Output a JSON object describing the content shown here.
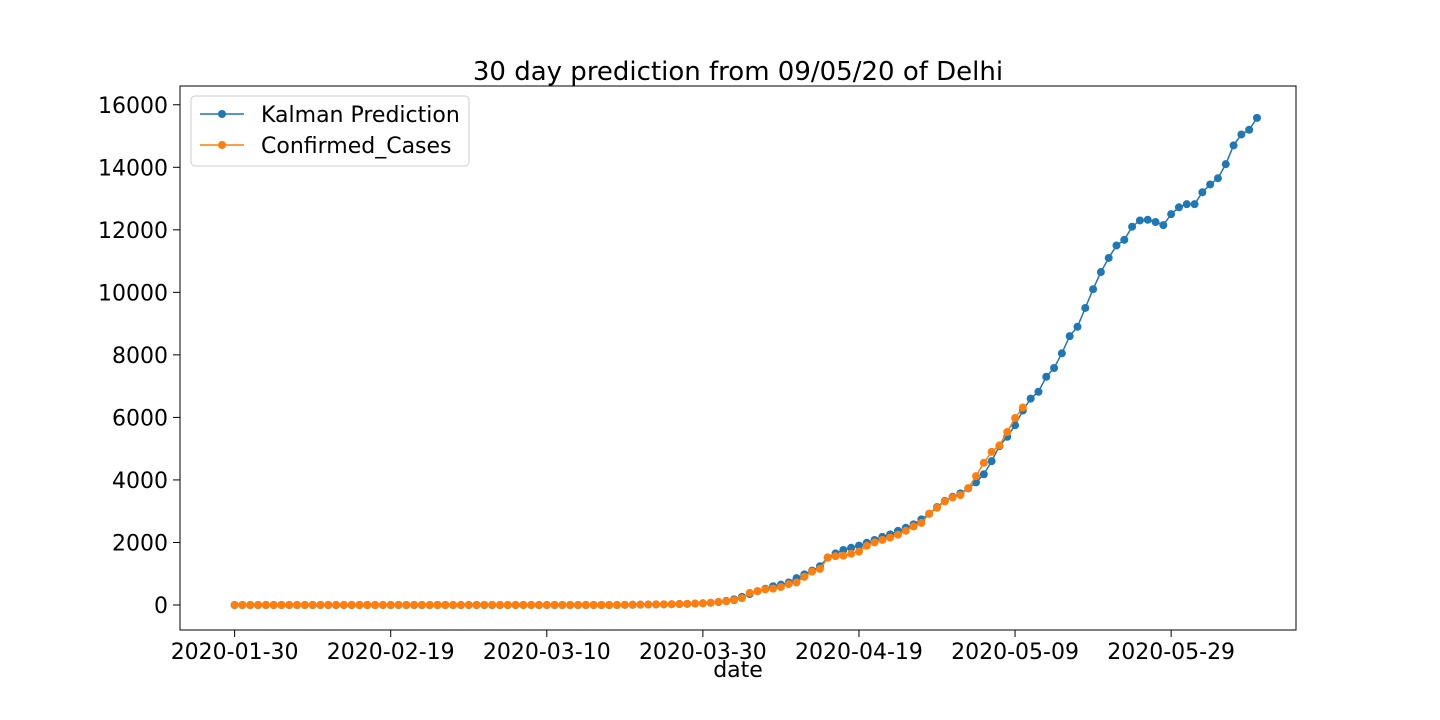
{
  "chart_data": {
    "type": "line",
    "title": "30 day prediction from 09/05/20 of Delhi",
    "xlabel": "date",
    "ylabel": "",
    "x_start": "2020-01-30",
    "x_end": "2020-06-08",
    "xlim": [
      "2020-01-23",
      "2020-06-14"
    ],
    "ylim": [
      -800,
      16600
    ],
    "x_ticks": [
      "2020-01-30",
      "2020-02-19",
      "2020-03-10",
      "2020-03-30",
      "2020-04-19",
      "2020-05-09",
      "2020-05-29"
    ],
    "y_ticks": [
      0,
      2000,
      4000,
      6000,
      8000,
      10000,
      12000,
      14000,
      16000
    ],
    "grid": false,
    "legend_position": "upper-left",
    "series": [
      {
        "name": "Kalman Prediction",
        "color": "#1f77b4",
        "marker": "circle",
        "start": "2020-01-30",
        "values": [
          0,
          0,
          0,
          0,
          0,
          0,
          0,
          0,
          0,
          0,
          0,
          0,
          0,
          0,
          0,
          0,
          0,
          0,
          0,
          0,
          0,
          0,
          0,
          0,
          0,
          0,
          0,
          0,
          0,
          0,
          0,
          0,
          0,
          0,
          0,
          0,
          0,
          0,
          0,
          0,
          0,
          0,
          0,
          0,
          0,
          0,
          0,
          0,
          0,
          0,
          5,
          8,
          12,
          15,
          18,
          21,
          25,
          30,
          37,
          45,
          55,
          70,
          95,
          130,
          180,
          260,
          350,
          440,
          520,
          600,
          650,
          720,
          860,
          980,
          1100,
          1240,
          1520,
          1650,
          1760,
          1830,
          1900,
          1990,
          2080,
          2180,
          2260,
          2370,
          2470,
          2580,
          2740,
          2920,
          3130,
          3330,
          3460,
          3570,
          3730,
          3920,
          4180,
          4600,
          5080,
          5380,
          5750,
          6220,
          6600,
          6820,
          7300,
          7580,
          8050,
          8600,
          8900,
          9500,
          10100,
          10650,
          11100,
          11500,
          11680,
          12100,
          12300,
          12320,
          12250,
          12150,
          12500,
          12720,
          12820,
          12820,
          13200,
          13450,
          13650,
          14100,
          14700,
          15050,
          15200,
          15580
        ]
      },
      {
        "name": "Confirmed_Cases",
        "color": "#ff7f0e",
        "marker": "circle",
        "start": "2020-01-30",
        "values": [
          0,
          0,
          0,
          0,
          0,
          0,
          0,
          0,
          0,
          0,
          0,
          0,
          0,
          0,
          0,
          0,
          0,
          0,
          0,
          0,
          0,
          0,
          0,
          0,
          0,
          0,
          0,
          0,
          0,
          0,
          0,
          0,
          0,
          0,
          0,
          0,
          0,
          0,
          0,
          0,
          0,
          0,
          0,
          0,
          0,
          0,
          0,
          0,
          0,
          0,
          5,
          8,
          12,
          15,
          18,
          21,
          25,
          30,
          37,
          45,
          55,
          72,
          97,
          120,
          152,
          219,
          386,
          445,
          503,
          523,
          576,
          669,
          720,
          903,
          1069,
          1154,
          1510,
          1561,
          1578,
          1640,
          1707,
          1893,
          2003,
          2081,
          2156,
          2248,
          2376,
          2514,
          2625,
          2918,
          3108,
          3314,
          3439,
          3515,
          3738,
          4122,
          4549,
          4898,
          5104,
          5532,
          5980,
          6318
        ]
      }
    ]
  }
}
